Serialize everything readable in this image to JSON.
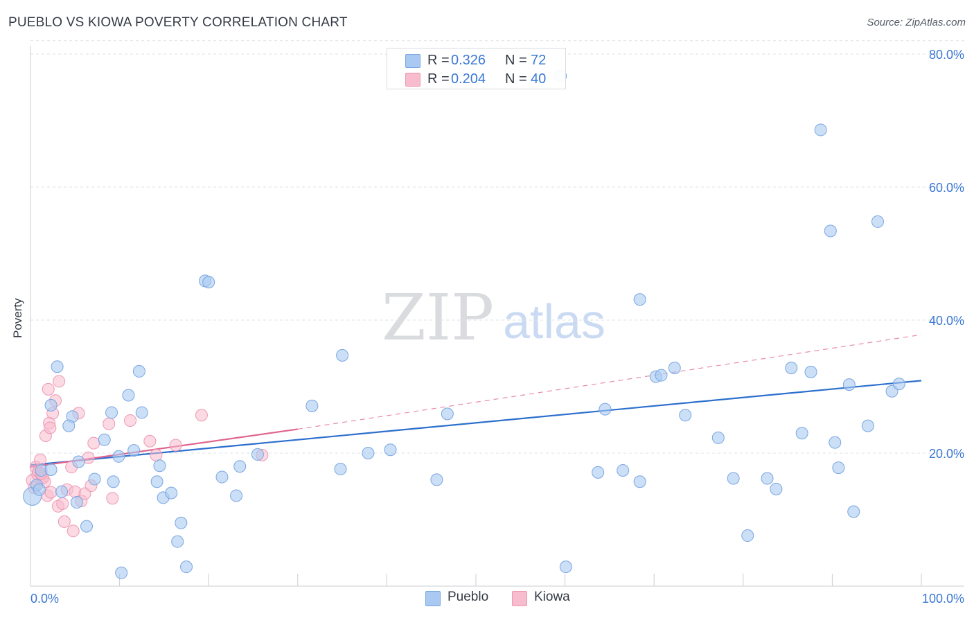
{
  "title": "PUEBLO VS KIOWA POVERTY CORRELATION CHART",
  "source": "Source: ZipAtlas.com",
  "watermark": {
    "zip": "ZIP",
    "atlas": "atlas"
  },
  "colors": {
    "pueblo_fill": "#a9c9f2",
    "pueblo_stroke": "#7aa6e0",
    "pueblo_line": "#2c6fcd",
    "kiowa_fill": "#f7bccd",
    "kiowa_stroke": "#ee98b2",
    "kiowa_line": "#e0648f",
    "axis_text": "#3a78d4",
    "grid": "#dde1e6"
  },
  "legend": {
    "pueblo": {
      "r_label": "R =",
      "r_value": "0.326",
      "n_label": "N =",
      "n_value": "72"
    },
    "kiowa": {
      "r_label": "R =",
      "r_value": "0.204",
      "n_label": "N =",
      "n_value": "40"
    }
  },
  "chart_data": {
    "type": "scatter",
    "title": "PUEBLO VS KIOWA POVERTY CORRELATION CHART",
    "xlabel": "",
    "ylabel": "Poverty",
    "xlim": [
      0,
      100
    ],
    "ylim": [
      0,
      82
    ],
    "x_tick_labels": [
      "0.0%",
      "100.0%"
    ],
    "y_ticks": [
      20,
      40,
      60,
      80
    ],
    "y_tick_labels": [
      "20.0%",
      "40.0%",
      "60.0%",
      "80.0%"
    ],
    "grid": true,
    "legend_position": "bottom-center",
    "series": [
      {
        "name": "Pueblo",
        "r": 0.326,
        "n": 72,
        "trend": {
          "x": [
            0,
            100
          ],
          "y": [
            18.2,
            30.9
          ],
          "style": "solid"
        },
        "points": [
          [
            0.2,
            13.5
          ],
          [
            0.7,
            15.2
          ],
          [
            1.2,
            17.4
          ],
          [
            2.3,
            17.5
          ],
          [
            3.0,
            33.0
          ],
          [
            2.3,
            27.2
          ],
          [
            4.7,
            25.5
          ],
          [
            5.4,
            18.7
          ],
          [
            6.3,
            9.0
          ],
          [
            3.5,
            14.2
          ],
          [
            4.3,
            24.1
          ],
          [
            5.2,
            12.6
          ],
          [
            7.2,
            16.1
          ],
          [
            8.3,
            22.0
          ],
          [
            9.1,
            26.1
          ],
          [
            9.3,
            15.7
          ],
          [
            9.9,
            19.5
          ],
          [
            11.0,
            28.7
          ],
          [
            11.6,
            20.4
          ],
          [
            12.2,
            32.3
          ],
          [
            12.5,
            26.1
          ],
          [
            14.2,
            15.7
          ],
          [
            14.5,
            18.1
          ],
          [
            14.9,
            13.3
          ],
          [
            15.8,
            14.0
          ],
          [
            16.5,
            6.7
          ],
          [
            16.9,
            9.5
          ],
          [
            17.5,
            2.9
          ],
          [
            10.2,
            2.0
          ],
          [
            19.6,
            45.9
          ],
          [
            20.0,
            45.7
          ],
          [
            21.5,
            16.4
          ],
          [
            23.1,
            13.6
          ],
          [
            23.5,
            18.0
          ],
          [
            25.5,
            19.8
          ],
          [
            31.6,
            27.1
          ],
          [
            35.0,
            34.7
          ],
          [
            34.8,
            17.6
          ],
          [
            37.9,
            20.0
          ],
          [
            40.4,
            20.5
          ],
          [
            45.6,
            16.0
          ],
          [
            46.8,
            25.9
          ],
          [
            59.5,
            76.7
          ],
          [
            60.1,
            2.9
          ],
          [
            63.7,
            17.1
          ],
          [
            64.5,
            26.6
          ],
          [
            66.5,
            17.4
          ],
          [
            68.4,
            15.7
          ],
          [
            68.4,
            43.1
          ],
          [
            70.2,
            31.5
          ],
          [
            70.8,
            31.7
          ],
          [
            72.3,
            32.8
          ],
          [
            73.5,
            25.7
          ],
          [
            77.2,
            22.3
          ],
          [
            78.9,
            16.2
          ],
          [
            80.5,
            7.6
          ],
          [
            82.7,
            16.2
          ],
          [
            83.7,
            14.6
          ],
          [
            85.4,
            32.8
          ],
          [
            86.6,
            23.0
          ],
          [
            87.6,
            32.2
          ],
          [
            88.7,
            68.6
          ],
          [
            89.8,
            53.4
          ],
          [
            90.3,
            21.6
          ],
          [
            90.7,
            17.8
          ],
          [
            91.9,
            30.3
          ],
          [
            92.4,
            11.2
          ],
          [
            94.0,
            24.1
          ],
          [
            95.1,
            54.8
          ],
          [
            96.7,
            29.3
          ],
          [
            97.5,
            30.4
          ],
          [
            1.0,
            14.5
          ]
        ]
      },
      {
        "name": "Kiowa",
        "r": 0.204,
        "n": 40,
        "trend": {
          "x": [
            0,
            30
          ],
          "y": [
            17.9,
            23.6
          ],
          "style": "solid"
        },
        "trend_extension": {
          "x": [
            30,
            100
          ],
          "y": [
            23.6,
            37.8
          ],
          "style": "dashed"
        },
        "points": [
          [
            0.2,
            15.9
          ],
          [
            0.6,
            17.9
          ],
          [
            0.8,
            16.8
          ],
          [
            1.1,
            19.0
          ],
          [
            1.3,
            16.5
          ],
          [
            1.6,
            15.7
          ],
          [
            1.7,
            22.6
          ],
          [
            1.9,
            13.6
          ],
          [
            2.0,
            29.6
          ],
          [
            2.1,
            24.5
          ],
          [
            2.2,
            23.8
          ],
          [
            2.3,
            14.1
          ],
          [
            2.5,
            26.0
          ],
          [
            2.8,
            27.9
          ],
          [
            3.1,
            12.0
          ],
          [
            3.2,
            30.8
          ],
          [
            3.6,
            12.4
          ],
          [
            3.8,
            9.7
          ],
          [
            4.1,
            14.5
          ],
          [
            4.6,
            17.9
          ],
          [
            4.8,
            8.3
          ],
          [
            5.0,
            14.2
          ],
          [
            5.4,
            26.0
          ],
          [
            5.7,
            12.8
          ],
          [
            6.1,
            13.9
          ],
          [
            6.5,
            19.3
          ],
          [
            7.1,
            21.5
          ],
          [
            8.8,
            24.4
          ],
          [
            9.2,
            13.2
          ],
          [
            11.2,
            24.9
          ],
          [
            13.4,
            21.8
          ],
          [
            14.1,
            19.7
          ],
          [
            16.3,
            21.2
          ],
          [
            19.2,
            25.7
          ],
          [
            26.0,
            19.7
          ],
          [
            0.4,
            14.8
          ],
          [
            0.9,
            17.2
          ],
          [
            1.4,
            16.3
          ],
          [
            6.8,
            15.1
          ],
          [
            1.2,
            16.9
          ]
        ]
      }
    ]
  },
  "bottom_legend": {
    "pueblo_label": "Pueblo",
    "kiowa_label": "Kiowa"
  }
}
